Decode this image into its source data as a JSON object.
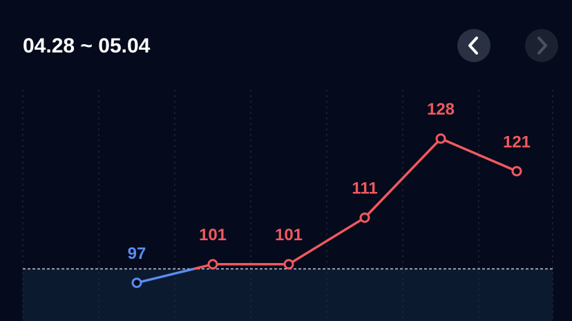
{
  "chart_data": {
    "type": "line",
    "title": "04.28 ~ 05.04",
    "categories": [
      null,
      null,
      null,
      null,
      null,
      null,
      null
    ],
    "values": [
      null,
      97,
      101,
      101,
      111,
      128,
      121
    ],
    "baseline": 100,
    "color": "#f0595e",
    "below_color": "#5b8def",
    "ylim": [
      88.8,
      138.5
    ],
    "grid": true
  }
}
